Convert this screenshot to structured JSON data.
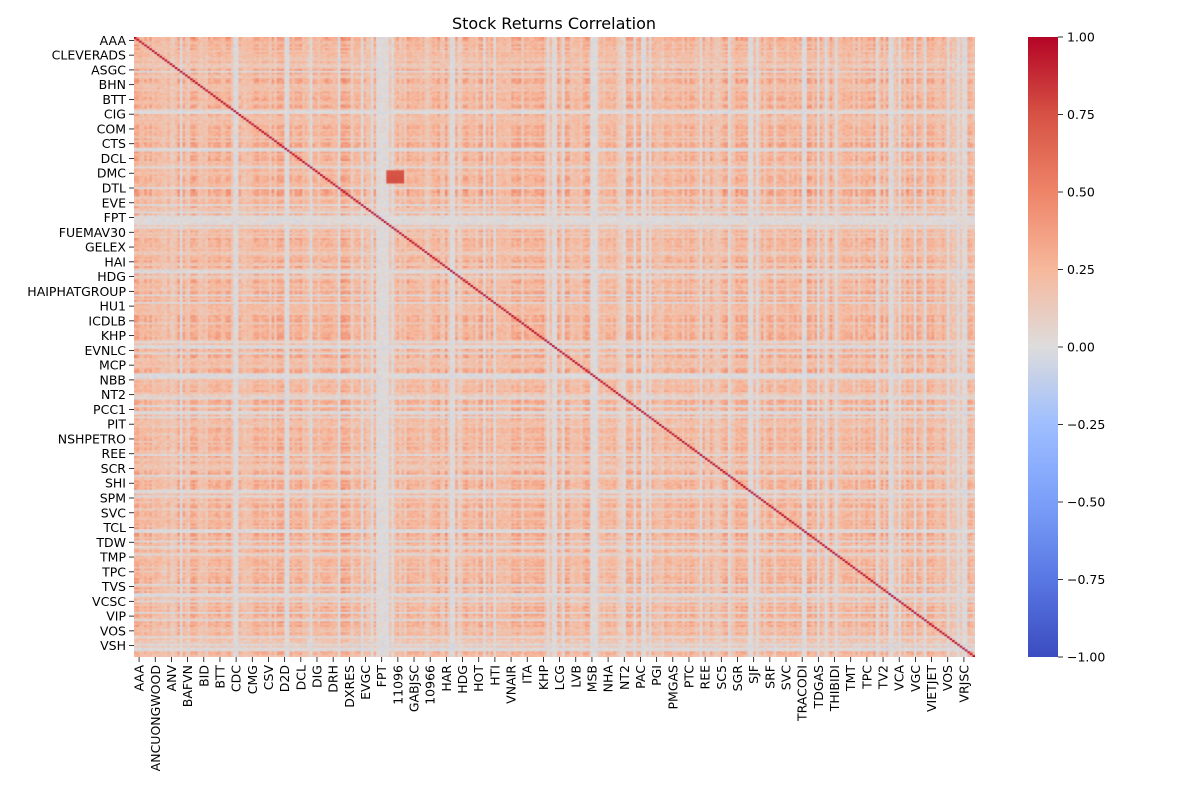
{
  "chart_data": {
    "type": "heatmap",
    "title": "Stock Returns Correlation",
    "xlabel": "",
    "ylabel": "",
    "y_tick_labels": [
      "AAA",
      "CLEVERADS",
      "ASGC",
      "BHN",
      "BTT",
      "CIG",
      "COM",
      "CTS",
      "DCL",
      "DMC",
      "DTL",
      "EVE",
      "FPT",
      "FUEMAV30",
      "GELEX",
      "HAI",
      "HDG",
      "HAIPHATGROUP",
      "HU1",
      "ICDLB",
      "KHP",
      "EVNLC",
      "MCP",
      "NBB",
      "NT2",
      "PCC1",
      "PIT",
      "NSHPETRO",
      "REE",
      "SCR",
      "SHI",
      "SPM",
      "SVC",
      "TCL",
      "TDW",
      "TMP",
      "TPC",
      "TVS",
      "VCSC",
      "VIP",
      "VOS",
      "VSH"
    ],
    "x_tick_labels": [
      "AAA",
      "ANCUONGWOOD",
      "ANV",
      "BAFVN",
      "BID",
      "BTT",
      "CDC",
      "CMG",
      "CSV",
      "D2D",
      "DCL",
      "DIG",
      "DRH",
      "DXRES",
      "EVGC",
      "FPT",
      "11096",
      "GABJSC",
      "10966",
      "HAR",
      "HDG",
      "HOT",
      "HTI",
      "VNAIR",
      "ITA",
      "KHP",
      "LCG",
      "LVB",
      "MSB",
      "NHA",
      "NT2",
      "PAC",
      "PGI",
      "PMGAS",
      "PTC",
      "REE",
      "SC5",
      "SGR",
      "SJF",
      "SRF",
      "SVC",
      "TRACODI",
      "TDGAS",
      "THIBIDI",
      "TMT",
      "TPC",
      "TV2",
      "VCA",
      "VGC",
      "VIETJET",
      "VOS",
      "VRJSC"
    ],
    "n_assets": 330,
    "value_range": [
      -1.0,
      1.0
    ],
    "colormap": "coolwarm",
    "diagonal_value": 1.0,
    "typical_offdiagonal_range": [
      0.0,
      0.5
    ],
    "colorbar": {
      "ticks": [
        1.0,
        0.75,
        0.5,
        0.25,
        0.0,
        -0.25,
        -0.5,
        -0.75,
        -1.0
      ],
      "tick_labels": [
        "1.00",
        "0.75",
        "0.50",
        "0.25",
        "0.00",
        "−0.25",
        "−0.50",
        "−0.75",
        "−1.00"
      ]
    },
    "grid": false,
    "legend": "colorbar-right"
  }
}
